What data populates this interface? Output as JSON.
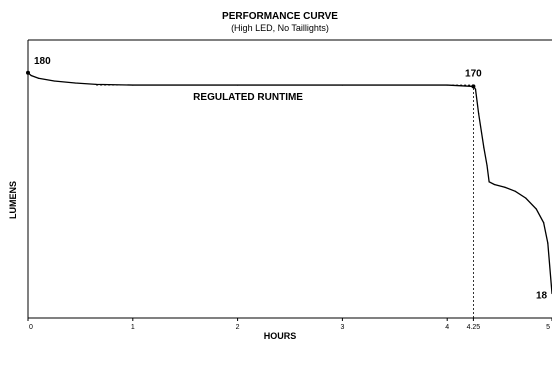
{
  "chart_data": {
    "type": "line",
    "title": "PERFORMANCE CURVE",
    "subtitle": "(High LED, No Taillights)",
    "xlabel": "HOURS",
    "ylabel": "LUMENS",
    "xlim": [
      0,
      5
    ],
    "ylim": [
      0,
      185
    ],
    "xticks": [
      0,
      1,
      2,
      3,
      4,
      4.25,
      5
    ],
    "xtick_labels": [
      "0",
      "1",
      "2",
      "3",
      "4",
      "4.25",
      "5"
    ],
    "grid": false,
    "series": [
      {
        "color": "#000000",
        "points": [
          [
            0,
            180
          ],
          [
            0.03,
            178
          ],
          [
            0.1,
            176
          ],
          [
            0.25,
            174
          ],
          [
            0.45,
            172.5
          ],
          [
            0.65,
            171.5
          ],
          [
            1.0,
            171
          ],
          [
            2.0,
            171
          ],
          [
            3.0,
            171
          ],
          [
            4.0,
            171
          ],
          [
            4.25,
            170
          ],
          [
            4.27,
            168
          ],
          [
            4.3,
            150
          ],
          [
            4.35,
            125
          ],
          [
            4.38,
            112
          ],
          [
            4.4,
            100
          ],
          [
            4.45,
            98
          ],
          [
            4.55,
            96
          ],
          [
            4.65,
            93
          ],
          [
            4.75,
            88
          ],
          [
            4.85,
            80
          ],
          [
            4.92,
            70
          ],
          [
            4.96,
            55
          ],
          [
            5.0,
            18
          ]
        ]
      }
    ],
    "reference_lines": [
      {
        "axis": "x",
        "x": 4.25,
        "from_y": 0,
        "to_y": 170,
        "style": "dotted"
      },
      {
        "axis": "y",
        "y": 171,
        "from_x": 0.65,
        "to_x": 4.25,
        "style": "dotted"
      }
    ],
    "annotations": [
      {
        "text": "180",
        "x": 0,
        "y": 180
      },
      {
        "text": "170",
        "x": 4.25,
        "y": 170
      },
      {
        "text": "REGULATED RUNTIME",
        "x": 2.1,
        "y": 160
      },
      {
        "text": "18",
        "x": 4.9,
        "y": 18
      }
    ]
  }
}
